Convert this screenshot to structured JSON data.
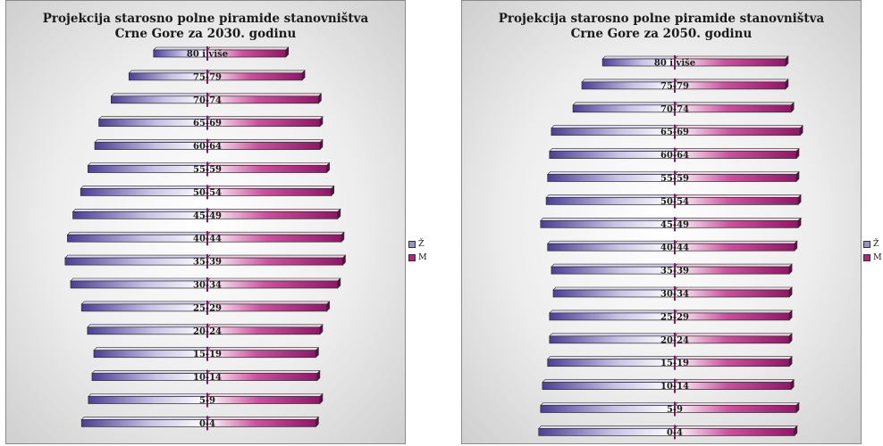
{
  "legend": [
    {
      "name": "Ž",
      "color": "#9b91c9"
    },
    {
      "name": "M",
      "color": "#a8287a"
    }
  ],
  "chart_data": [
    {
      "type": "bar",
      "orientation": "horizontal-population-pyramid",
      "title": [
        "Projekcija starosno polne piramide stanovništva",
        "Crne Gore za 2030. godinu"
      ],
      "categories": [
        "80 i više",
        "75-79",
        "70-74",
        "65-69",
        "60-64",
        "55-59",
        "50-54",
        "45-49",
        "40-44",
        "35-39",
        "30-34",
        "25-29",
        "20-24",
        "15-19",
        "10-14",
        "5-9",
        "0-4"
      ],
      "series": [
        {
          "name": "Ž",
          "values": [
            11.8,
            17.2,
            21.1,
            23.8,
            24.7,
            26.2,
            27.8,
            29.5,
            30.7,
            31.2,
            30.0,
            27.6,
            26.3,
            24.9,
            25.3,
            26.1,
            27.6
          ]
        },
        {
          "name": "M",
          "values": [
            17.2,
            20.8,
            24.4,
            24.7,
            24.7,
            26.2,
            27.2,
            28.6,
            29.4,
            29.7,
            28.6,
            26.2,
            24.7,
            23.8,
            24.1,
            24.7,
            23.8
          ]
        }
      ]
    },
    {
      "type": "bar",
      "orientation": "horizontal-population-pyramid",
      "title": [
        "Projekcija starosno polne piramide stanovništva",
        "Crne Gore za 2050. godinu"
      ],
      "categories": [
        "80 i više",
        "75-79",
        "70-74",
        "65-69",
        "60-64",
        "55-59",
        "50-54",
        "45-49",
        "40-44",
        "35-39",
        "30-34",
        "25-29",
        "20-24",
        "15-19",
        "10-14",
        "5-9",
        "0-4"
      ],
      "series": [
        {
          "name": "Ž",
          "values": [
            15.4,
            19.8,
            21.7,
            26.3,
            26.7,
            27.1,
            27.4,
            28.6,
            27.1,
            26.3,
            25.9,
            26.7,
            26.7,
            27.1,
            28.2,
            28.6,
            29.0
          ]
        },
        {
          "name": "M",
          "values": [
            23.6,
            23.6,
            24.8,
            26.7,
            25.9,
            25.9,
            26.3,
            26.3,
            25.5,
            24.4,
            24.4,
            24.4,
            24.4,
            24.4,
            24.8,
            25.9,
            25.5
          ]
        }
      ]
    }
  ]
}
